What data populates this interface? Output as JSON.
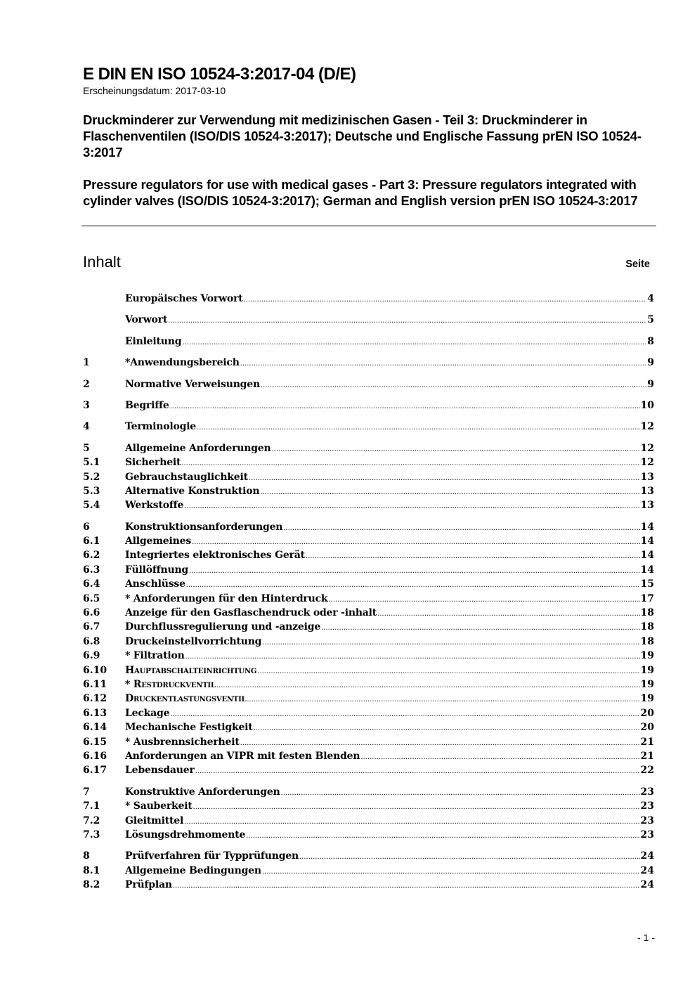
{
  "header": {
    "doc_id": "E DIN EN ISO 10524-3:2017-04 (D/E)",
    "publication_date": "Erscheinungsdatum: 2017-03-10",
    "title_de": "Druckminderer zur Verwendung mit medizinischen Gasen - Teil 3: Druckminderer in Flaschenventilen (ISO/DIS 10524-3:2017); Deutsche und Englische Fassung prEN ISO 10524-3:2017",
    "title_en": "Pressure regulators for use with medical gases - Part 3: Pressure regulators integrated with cylinder valves (ISO/DIS 10524-3:2017); German and English version prEN ISO 10524-3:2017"
  },
  "toc": {
    "heading": "Inhalt",
    "page_label": "Seite",
    "entries": [
      {
        "num": "",
        "title": "Europäisches Vorwort",
        "page": "4",
        "gap": false
      },
      {
        "num": "",
        "title": "Vorwort",
        "page": "5",
        "gap": true
      },
      {
        "num": "",
        "title": "Einleitung",
        "page": "8",
        "gap": true
      },
      {
        "num": "1",
        "title": "*Anwendungsbereich",
        "page": "9",
        "gap": true
      },
      {
        "num": "2",
        "title": "Normative Verweisungen",
        "page": "9",
        "gap": true
      },
      {
        "num": "3",
        "title": "Begriffe",
        "page": "10",
        "gap": true
      },
      {
        "num": "4",
        "title": "Terminologie",
        "page": "12",
        "gap": true
      },
      {
        "num": "5",
        "title": "Allgemeine Anforderungen",
        "page": "12",
        "gap": true
      },
      {
        "num": "5.1",
        "title": "Sicherheit",
        "page": "12",
        "gap": false
      },
      {
        "num": "5.2",
        "title": "Gebrauchstauglichkeit",
        "page": "13",
        "gap": false
      },
      {
        "num": "5.3",
        "title": "Alternative Konstruktion",
        "page": "13",
        "gap": false
      },
      {
        "num": "5.4",
        "title": "Werkstoffe",
        "page": "13",
        "gap": false
      },
      {
        "num": "6",
        "title": "Konstruktionsanforderungen",
        "page": "14",
        "gap": true
      },
      {
        "num": "6.1",
        "title": "Allgemeines",
        "page": "14",
        "gap": false
      },
      {
        "num": "6.2",
        "title": "Integriertes elektronisches Gerät",
        "page": "14",
        "gap": false
      },
      {
        "num": "6.3",
        "title": "Füllöffnung",
        "page": "14",
        "gap": false
      },
      {
        "num": "6.4",
        "title": "Anschlüsse",
        "page": "15",
        "gap": false
      },
      {
        "num": "6.5",
        "title": "* Anforderungen für den Hinterdruck",
        "page": "17",
        "gap": false
      },
      {
        "num": "6.6",
        "title": "Anzeige für den Gasflaschendruck oder -inhalt",
        "page": "18",
        "gap": false
      },
      {
        "num": "6.7",
        "title": "Durchflussregulierung und -anzeige",
        "page": "18",
        "gap": false
      },
      {
        "num": "6.8",
        "title": "Druckeinstellvorrichtung",
        "page": "18",
        "gap": false
      },
      {
        "num": "6.9",
        "title": "* Filtration",
        "page": "19",
        "gap": false
      },
      {
        "num": "6.10",
        "title": "Hauptabschalteinrichtung",
        "page": "19",
        "gap": false,
        "small_caps": true
      },
      {
        "num": "6.11",
        "title": "* Restdruckventil",
        "page": "19",
        "gap": false,
        "small_caps": true
      },
      {
        "num": "6.12",
        "title": "Druckentlastungsventil",
        "page": "19",
        "gap": false,
        "small_caps": true
      },
      {
        "num": "6.13",
        "title": "Leckage",
        "page": "20",
        "gap": false
      },
      {
        "num": "6.14",
        "title": "Mechanische Festigkeit",
        "page": "20",
        "gap": false
      },
      {
        "num": "6.15",
        "title": "* Ausbrennsicherheit",
        "page": "21",
        "gap": false
      },
      {
        "num": "6.16",
        "title": "Anforderungen an VIPR mit festen Blenden",
        "page": "21",
        "gap": false
      },
      {
        "num": "6.17",
        "title": "Lebensdauer",
        "page": "22",
        "gap": false
      },
      {
        "num": "7",
        "title": "Konstruktive Anforderungen",
        "page": "23",
        "gap": true
      },
      {
        "num": "7.1",
        "title": "* Sauberkeit",
        "page": "23",
        "gap": false
      },
      {
        "num": "7.2",
        "title": "Gleitmittel",
        "page": "23",
        "gap": false
      },
      {
        "num": "7.3",
        "title": "Lösungsdrehmomente",
        "page": "23",
        "gap": false
      },
      {
        "num": "8",
        "title": "Prüfverfahren für Typprüfungen",
        "page": "24",
        "gap": true
      },
      {
        "num": "8.1",
        "title": "Allgemeine Bedingungen",
        "page": "24",
        "gap": false
      },
      {
        "num": "8.2",
        "title": "Prüfplan",
        "page": "24",
        "gap": false
      }
    ]
  },
  "footer": {
    "page_number": "- 1 -"
  }
}
